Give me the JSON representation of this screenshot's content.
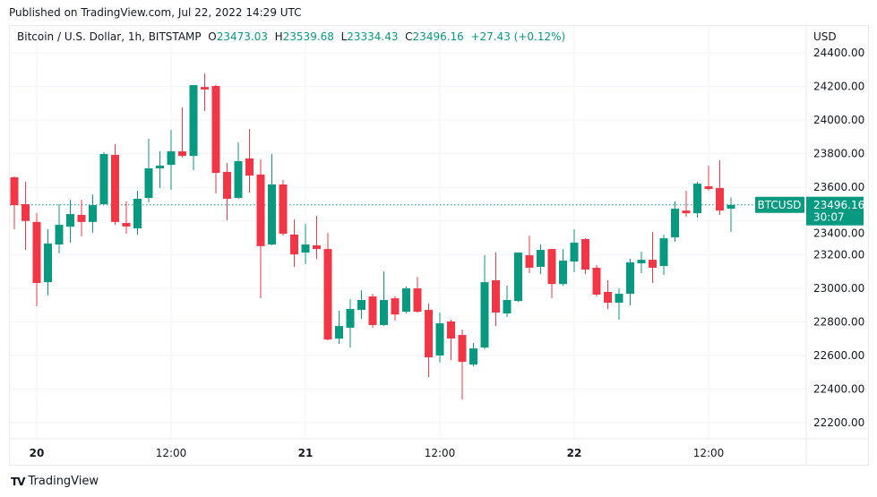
{
  "published": "Published on TradingView.com, Jul 22, 2022 14:29 UTC",
  "legend": {
    "symbol": "Bitcoin / U.S. Dollar, 1h, BITSTAMP",
    "o_label": "O",
    "o": "23473.03",
    "h_label": "H",
    "h": "23539.68",
    "l_label": "L",
    "l": "23334.43",
    "c_label": "C",
    "c": "23496.16",
    "change": "+27.43 (+0.12%)"
  },
  "currency": "USD",
  "price_tag": {
    "symbol": "BTCUSD",
    "price": "23496.16",
    "countdown": "30:07"
  },
  "brand": "TradingView",
  "colors": {
    "up": "#089981",
    "down": "#f23645",
    "grid": "#f0f3fa"
  },
  "chart_data": {
    "type": "candlestick",
    "interval": "1h",
    "ylim": [
      22100,
      24480
    ],
    "y_ticks": [
      "24400.00",
      "24200.00",
      "24000.00",
      "23800.00",
      "23600.00",
      "23400.00",
      "23200.00",
      "23000.00",
      "22800.00",
      "22600.00",
      "22400.00",
      "22200.00"
    ],
    "x_ticks": [
      {
        "label": "20",
        "index": 2,
        "bold": true
      },
      {
        "label": "12:00",
        "index": 14
      },
      {
        "label": "21",
        "index": 26,
        "bold": true
      },
      {
        "label": "12:00",
        "index": 38
      },
      {
        "label": "22",
        "index": 50,
        "bold": true
      },
      {
        "label": "12:00",
        "index": 62
      }
    ],
    "last_price": 23496.16,
    "grid": true,
    "ohlc": [
      [
        23660,
        23665,
        23351,
        23494
      ],
      [
        23500,
        23633,
        23228,
        23400
      ],
      [
        23394,
        23447,
        22893,
        23031
      ],
      [
        23036,
        23351,
        22957,
        23266
      ],
      [
        23260,
        23500,
        23207,
        23377
      ],
      [
        23366,
        23526,
        23271,
        23441
      ],
      [
        23436,
        23526,
        23308,
        23394
      ],
      [
        23394,
        23558,
        23330,
        23494
      ],
      [
        23500,
        23809,
        23495,
        23798
      ],
      [
        23793,
        23857,
        23377,
        23394
      ],
      [
        23388,
        23516,
        23324,
        23367
      ],
      [
        23356,
        23580,
        23319,
        23532
      ],
      [
        23537,
        23889,
        23510,
        23713
      ],
      [
        23713,
        23814,
        23596,
        23729
      ],
      [
        23734,
        23942,
        23585,
        23814
      ],
      [
        23814,
        24075,
        23777,
        23787
      ],
      [
        23787,
        24208,
        23702,
        24208
      ],
      [
        24197,
        24277,
        24054,
        24182
      ],
      [
        24203,
        24210,
        23564,
        23686
      ],
      [
        23692,
        23745,
        23404,
        23532
      ],
      [
        23537,
        23867,
        23532,
        23756
      ],
      [
        23772,
        23947,
        23569,
        23670
      ],
      [
        23676,
        23766,
        22940,
        23250
      ],
      [
        23260,
        23798,
        23255,
        23617
      ],
      [
        23617,
        23644,
        23313,
        23324
      ],
      [
        23319,
        23409,
        23127,
        23201
      ],
      [
        23212,
        23383,
        23143,
        23260
      ],
      [
        23255,
        23430,
        23175,
        23233
      ],
      [
        23233,
        23329,
        22690,
        22695
      ],
      [
        22700,
        22866,
        22669,
        22775
      ],
      [
        22765,
        22935,
        22647,
        22877
      ],
      [
        22871,
        22988,
        22818,
        22930
      ],
      [
        22951,
        22967,
        22765,
        22781
      ],
      [
        22781,
        23100,
        22776,
        22930
      ],
      [
        22940,
        22951,
        22807,
        22844
      ],
      [
        22860,
        23010,
        22850,
        22999
      ],
      [
        22999,
        23068,
        22855,
        22860
      ],
      [
        22871,
        22908,
        22472,
        22589
      ],
      [
        22600,
        22855,
        22557,
        22791
      ],
      [
        22802,
        22813,
        22573,
        22701
      ],
      [
        22722,
        22754,
        22339,
        22562
      ],
      [
        22546,
        22674,
        22535,
        22642
      ],
      [
        22647,
        23196,
        22637,
        23036
      ],
      [
        23047,
        23212,
        22775,
        22855
      ],
      [
        22850,
        23015,
        22829,
        22930
      ],
      [
        22924,
        23212,
        22919,
        23212
      ],
      [
        23196,
        23313,
        23090,
        23122
      ],
      [
        23127,
        23260,
        23084,
        23228
      ],
      [
        23233,
        23233,
        22940,
        23025
      ],
      [
        23025,
        23233,
        23015,
        23164
      ],
      [
        23159,
        23351,
        23095,
        23271
      ],
      [
        23292,
        23297,
        23084,
        23111
      ],
      [
        23122,
        23138,
        22950,
        22962
      ],
      [
        22978,
        23047,
        22877,
        22914
      ],
      [
        22914,
        22999,
        22813,
        22967
      ],
      [
        22967,
        23175,
        22898,
        23154
      ],
      [
        23148,
        23217,
        23090,
        23169
      ],
      [
        23169,
        23335,
        23031,
        23122
      ],
      [
        23132,
        23319,
        23079,
        23297
      ],
      [
        23303,
        23516,
        23276,
        23473
      ],
      [
        23462,
        23580,
        23425,
        23446
      ],
      [
        23446,
        23633,
        23420,
        23622
      ],
      [
        23606,
        23729,
        23580,
        23590
      ],
      [
        23596,
        23761,
        23436,
        23462
      ],
      [
        23473.03,
        23539.68,
        23334.43,
        23496.16
      ]
    ]
  }
}
